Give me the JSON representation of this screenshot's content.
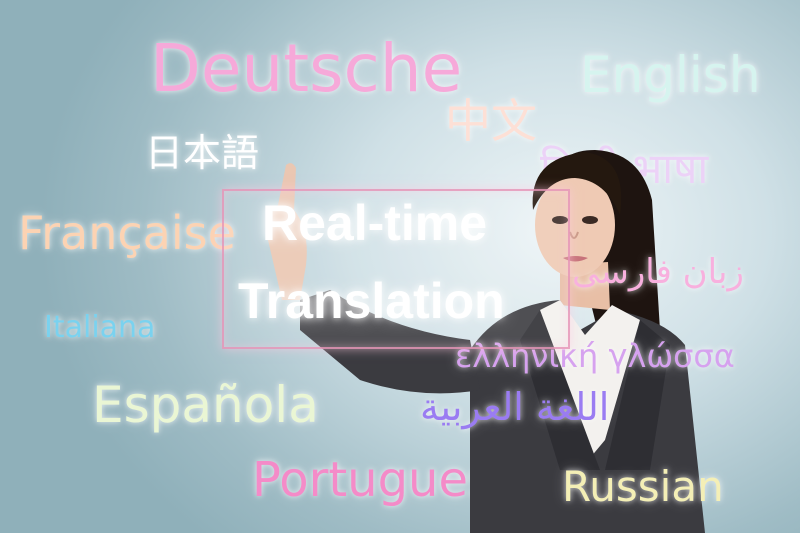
{
  "headline": {
    "line1": "Real-time",
    "line2": "Translation"
  },
  "languages": {
    "deutsche": "Deutsche",
    "english": "English",
    "chinese": "中文",
    "japanese": "日本語",
    "hindi": "हिन्दी भाषा",
    "francaise": "Française",
    "persian": "زبان فارسی",
    "italiana": "Italiana",
    "greek": "ελληνική γλώσσα",
    "arabic": "اللغة العربية",
    "espanola": "Española",
    "portugues": "Portugues",
    "russian": "Russian"
  },
  "colors": {
    "background": "#a8c4cc",
    "deutsche": "#f6a9d9",
    "english": "#d6f4ef",
    "chinese": "#fde0d6",
    "japanese": "#ffffff",
    "hindi": "#ecd2f7",
    "francaise": "#fcd3b3",
    "persian": "#f8b0de",
    "italiana": "#7ad2ef",
    "greek": "#d6a2ef",
    "arabic": "#9a7cf2",
    "espanola": "#eaf6d4",
    "portugues": "#f48bc8",
    "russian": "#f4efb6",
    "frame": "#e696b9"
  }
}
